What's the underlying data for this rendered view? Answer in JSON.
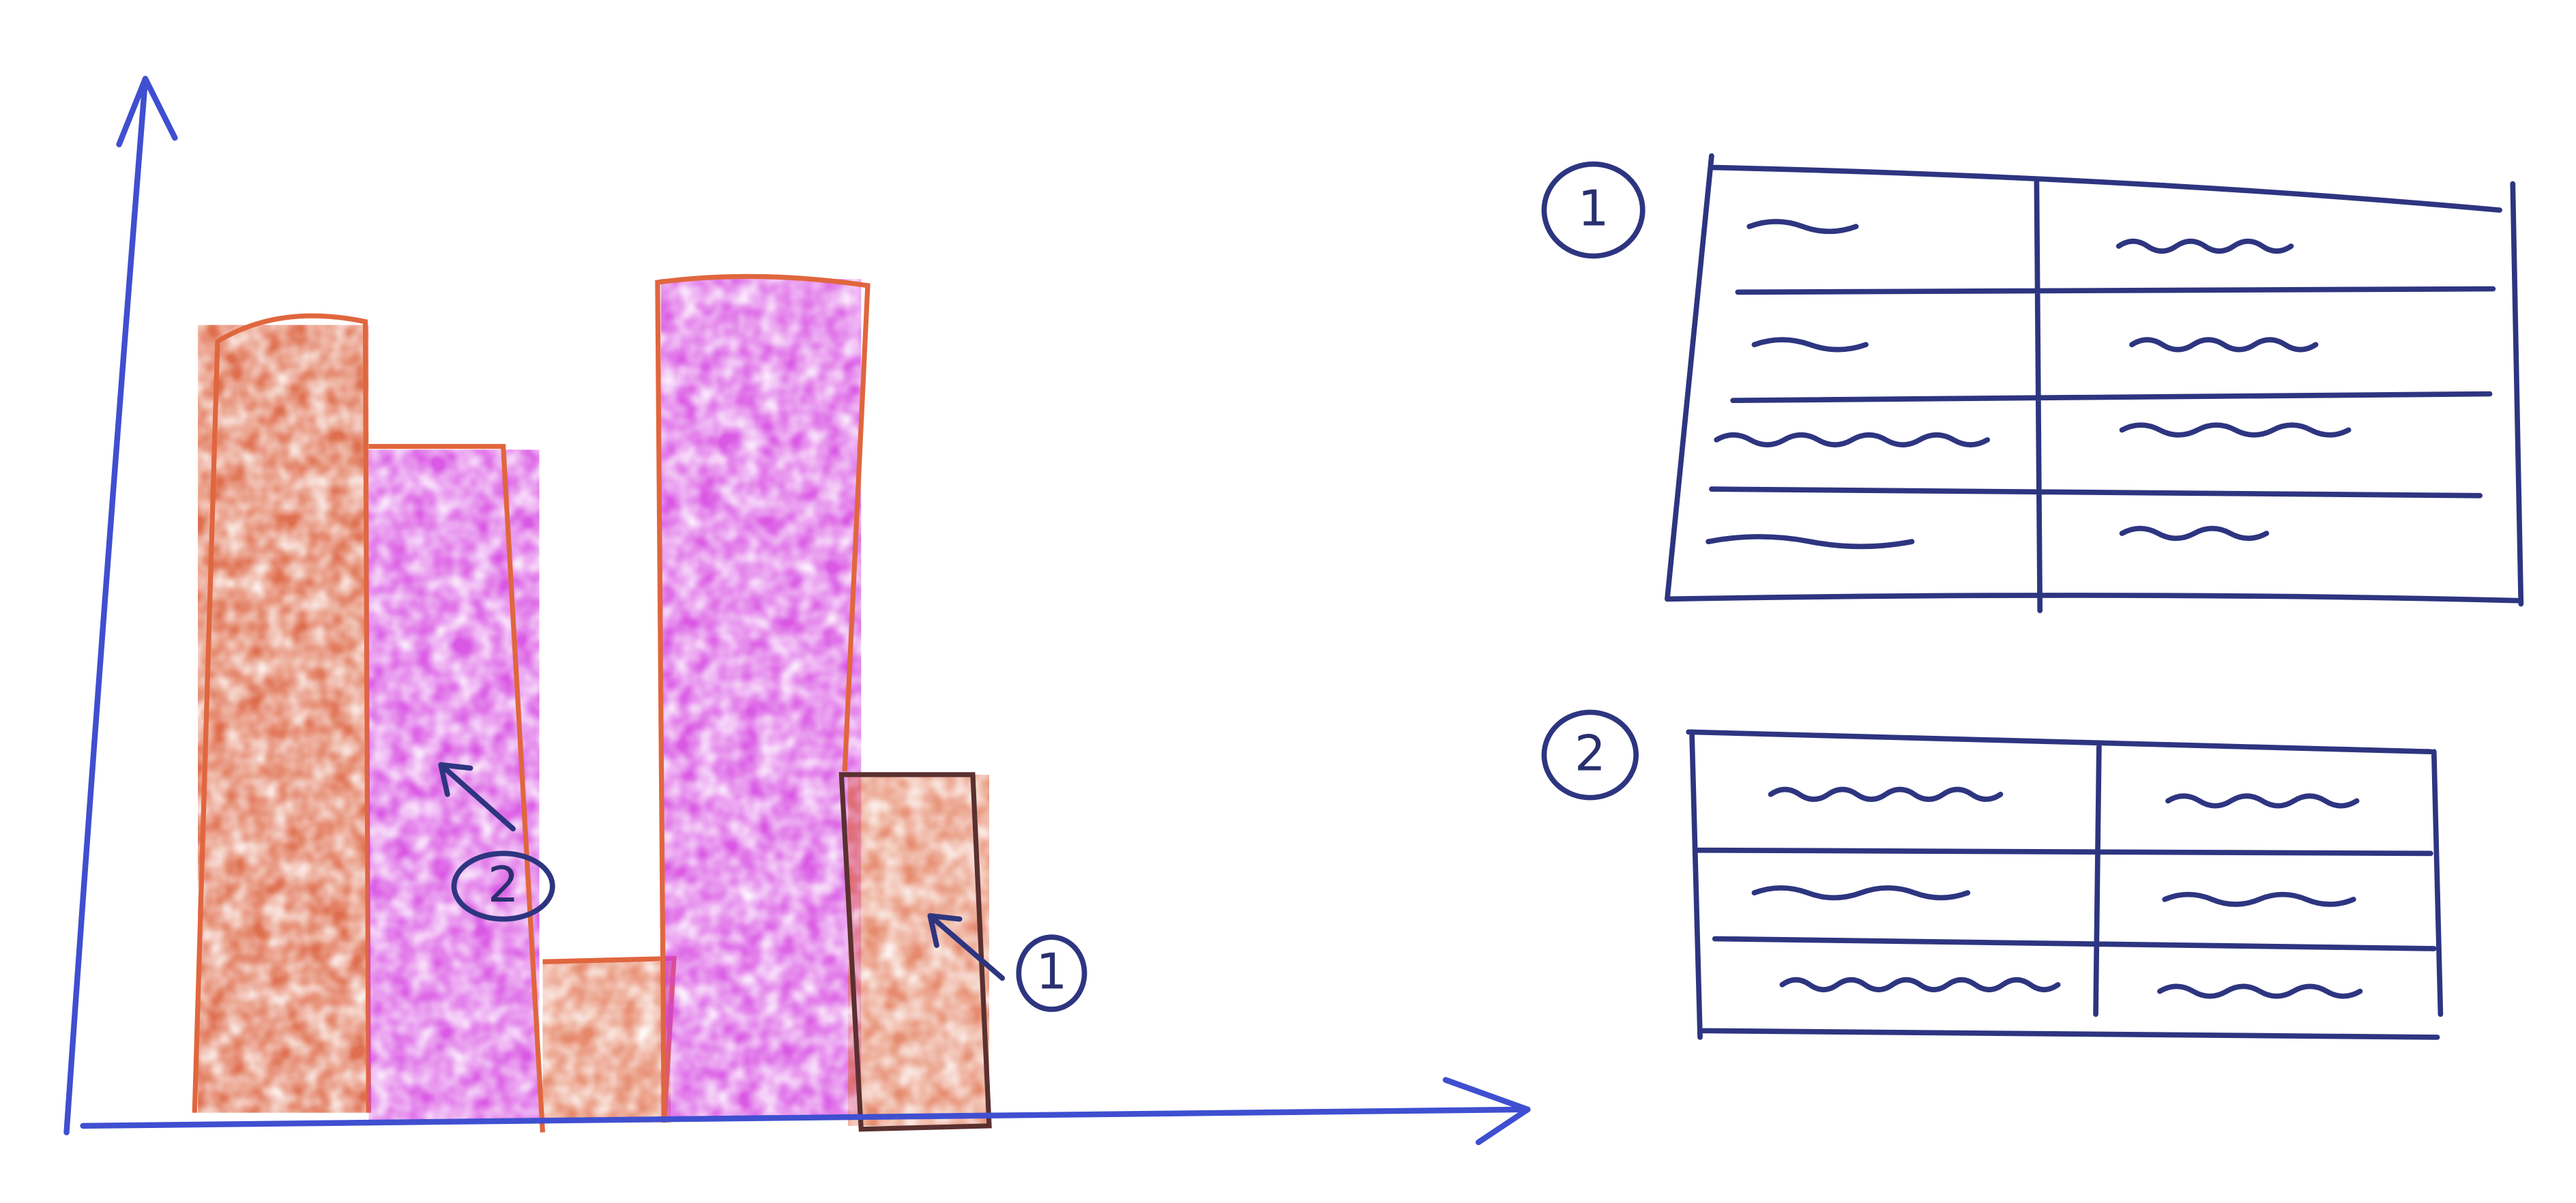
{
  "annotations": [
    {
      "label": "2"
    },
    {
      "label": "1"
    }
  ],
  "tables": [
    {
      "label": "1"
    },
    {
      "label": "2"
    }
  ]
}
